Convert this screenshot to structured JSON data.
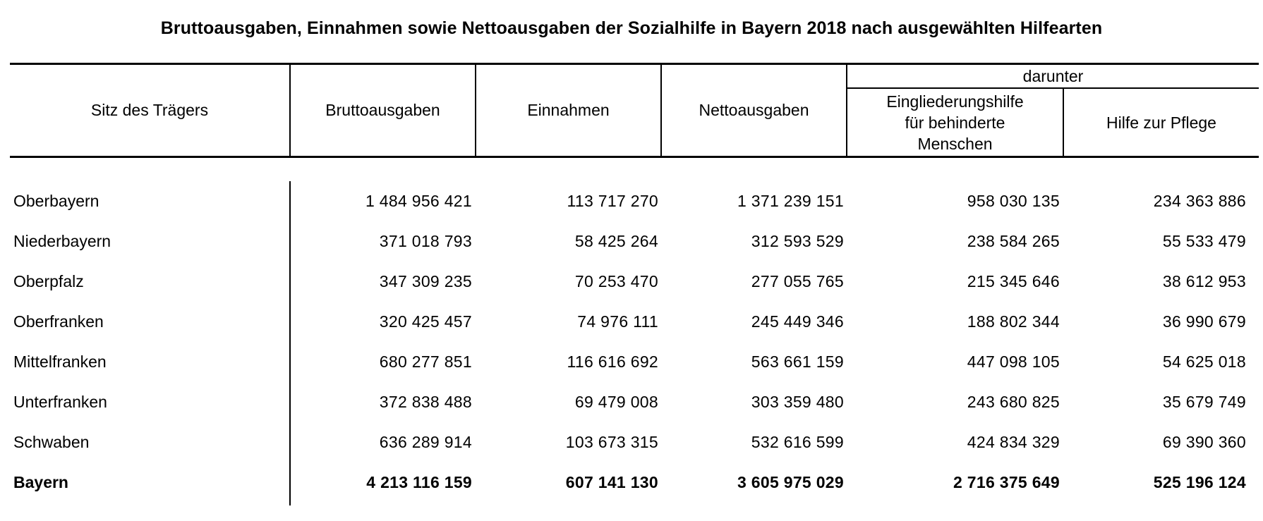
{
  "title": "Bruttoausgaben, Einnahmen sowie Nettoausgaben der Sozialhilfe in Bayern 2018 nach ausgewählten Hilfearten",
  "headers": {
    "region": "Sitz des Trägers",
    "brutto": "Bruttoausgaben",
    "einnahmen": "Einnahmen",
    "netto": "Nettoausgaben",
    "darunter": "darunter",
    "eingliederung": [
      "Eingliederungshilfe",
      "für behinderte",
      "Menschen"
    ],
    "pflege": "Hilfe zur Pflege"
  },
  "rows": [
    {
      "region": "Oberbayern",
      "brutto": "1 484 956 421",
      "einnahmen": "113 717 270",
      "netto": "1 371 239 151",
      "eingliederung": "958 030 135",
      "pflege": "234 363 886"
    },
    {
      "region": "Niederbayern",
      "brutto": "371 018 793",
      "einnahmen": "58 425 264",
      "netto": "312 593 529",
      "eingliederung": "238 584 265",
      "pflege": "55 533 479"
    },
    {
      "region": "Oberpfalz",
      "brutto": "347 309 235",
      "einnahmen": "70 253 470",
      "netto": "277 055 765",
      "eingliederung": "215 345 646",
      "pflege": "38 612 953"
    },
    {
      "region": "Oberfranken",
      "brutto": "320 425 457",
      "einnahmen": "74 976 111",
      "netto": "245 449 346",
      "eingliederung": "188 802 344",
      "pflege": "36 990 679"
    },
    {
      "region": "Mittelfranken",
      "brutto": "680 277 851",
      "einnahmen": "116 616 692",
      "netto": "563 661 159",
      "eingliederung": "447 098 105",
      "pflege": "54 625 018"
    },
    {
      "region": "Unterfranken",
      "brutto": "372 838 488",
      "einnahmen": "69 479 008",
      "netto": "303 359 480",
      "eingliederung": "243 680 825",
      "pflege": "35 679 749"
    },
    {
      "region": "Schwaben",
      "brutto": "636 289 914",
      "einnahmen": "103 673 315",
      "netto": "532 616 599",
      "eingliederung": "424 834 329",
      "pflege": "69 390 360"
    }
  ],
  "total": {
    "region": "Bayern",
    "brutto": "4 213 116 159",
    "einnahmen": "607 141 130",
    "netto": "3 605 975 029",
    "eingliederung": "2 716 375 649",
    "pflege": "525 196 124"
  }
}
